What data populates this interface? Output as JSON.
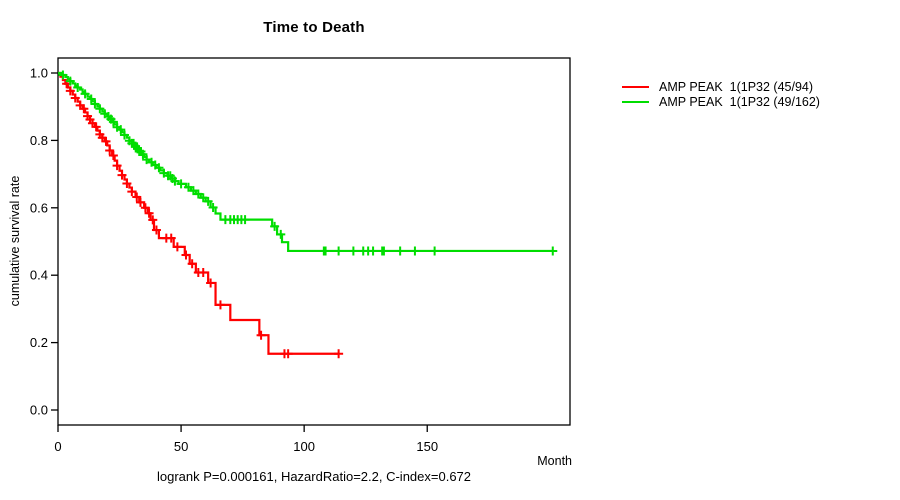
{
  "title": "Time to Death",
  "footer": "logrank P=0.000161, HazardRatio=2.2, C-index=0.672",
  "axes": {
    "x": {
      "label": "Month",
      "ticks": [
        0,
        50,
        100,
        150
      ]
    },
    "y": {
      "label": "cumulative survival rate",
      "ticks": [
        0.0,
        0.2,
        0.4,
        0.6,
        0.8,
        1.0
      ]
    }
  },
  "legend": [
    {
      "label": "AMP PEAK  1(1P32 (45/94)",
      "color": "#ff0000"
    },
    {
      "label": "AMP PEAK  1(1P32 (49/162)",
      "color": "#00dd00"
    }
  ],
  "colors": {
    "curve_red": "#ff0000",
    "curve_green": "#00dd00",
    "axis": "#000000"
  },
  "chart_data": {
    "type": "line",
    "variant": "kaplan_meier_step",
    "title": "Time to Death",
    "xlabel": "Month",
    "ylabel": "cumulative survival rate",
    "xlim": [
      0,
      208
    ],
    "xticks": [
      0,
      50,
      100,
      150
    ],
    "ylim": [
      0.0,
      1.0
    ],
    "yticks": [
      0.0,
      0.2,
      0.4,
      0.6,
      0.8,
      1.0
    ],
    "grid": false,
    "legend_position": "right-outside",
    "annotation": "logrank P=0.000161, HazardRatio=2.2, C-index=0.672",
    "series": [
      {
        "name": "AMP PEAK  1(1P32 (45/94)",
        "events_n_label": "45/94",
        "color": "#ff0000",
        "end_time": 114,
        "steps": [
          [
            0,
            1
          ],
          [
            1,
            0.989
          ],
          [
            2,
            0.979
          ],
          [
            3,
            0.968
          ],
          [
            4,
            0.957
          ],
          [
            5,
            0.947
          ],
          [
            6,
            0.936
          ],
          [
            7,
            0.926
          ],
          [
            8,
            0.915
          ],
          [
            9,
            0.904
          ],
          [
            10,
            0.894
          ],
          [
            11,
            0.883
          ],
          [
            12,
            0.872
          ],
          [
            13,
            0.862
          ],
          [
            14,
            0.851
          ],
          [
            15,
            0.84
          ],
          [
            16,
            0.829
          ],
          [
            17,
            0.818
          ],
          [
            18,
            0.808
          ],
          [
            19,
            0.797
          ],
          [
            20,
            0.785
          ],
          [
            21,
            0.77
          ],
          [
            22,
            0.755
          ],
          [
            23,
            0.74
          ],
          [
            24,
            0.725
          ],
          [
            25,
            0.71
          ],
          [
            26,
            0.697
          ],
          [
            27,
            0.684
          ],
          [
            28,
            0.672
          ],
          [
            29,
            0.66
          ],
          [
            30,
            0.648
          ],
          [
            31.5,
            0.632
          ],
          [
            33,
            0.616
          ],
          [
            35,
            0.6
          ],
          [
            36.5,
            0.584
          ],
          [
            37.6,
            0.564
          ],
          [
            39,
            0.534
          ],
          [
            41,
            0.51
          ],
          [
            47,
            0.484
          ],
          [
            51.5,
            0.46
          ],
          [
            53.5,
            0.434
          ],
          [
            56,
            0.408
          ],
          [
            61,
            0.377
          ],
          [
            64,
            0.312
          ],
          [
            70,
            0.267
          ],
          [
            81.8,
            0.222
          ],
          [
            85.5,
            0.167
          ]
        ],
        "censor_times": [
          3.5,
          5,
          7,
          9,
          10.5,
          12,
          13,
          14,
          15.5,
          17,
          18,
          19.5,
          21,
          22.5,
          24,
          26,
          28,
          30,
          32,
          33.5,
          35.5,
          37,
          38.5,
          40,
          44,
          46,
          48.5,
          52,
          54.5,
          57,
          59,
          62,
          66,
          82.5,
          92,
          93.5,
          114
        ]
      },
      {
        "name": "AMP PEAK  1(1P32 (49/162)",
        "events_n_label": "49/162",
        "color": "#00dd00",
        "end_time": 201,
        "steps": [
          [
            0,
            1
          ],
          [
            1.5,
            0.994
          ],
          [
            3,
            0.988
          ],
          [
            4,
            0.982
          ],
          [
            5,
            0.976
          ],
          [
            6,
            0.969
          ],
          [
            7,
            0.963
          ],
          [
            8,
            0.957
          ],
          [
            9,
            0.951
          ],
          [
            10,
            0.944
          ],
          [
            11,
            0.938
          ],
          [
            12,
            0.93
          ],
          [
            13,
            0.923
          ],
          [
            14,
            0.916
          ],
          [
            15,
            0.908
          ],
          [
            16,
            0.901
          ],
          [
            17,
            0.894
          ],
          [
            18,
            0.886
          ],
          [
            19,
            0.879
          ],
          [
            20,
            0.871
          ],
          [
            21,
            0.863
          ],
          [
            22,
            0.855
          ],
          [
            23,
            0.847
          ],
          [
            24,
            0.839
          ],
          [
            25,
            0.832
          ],
          [
            26,
            0.824
          ],
          [
            27,
            0.816
          ],
          [
            28,
            0.808
          ],
          [
            29,
            0.799
          ],
          [
            30,
            0.791
          ],
          [
            31,
            0.783
          ],
          [
            32,
            0.775
          ],
          [
            33,
            0.767
          ],
          [
            34,
            0.759
          ],
          [
            35,
            0.751
          ],
          [
            36,
            0.743
          ],
          [
            37,
            0.735
          ],
          [
            38.5,
            0.727
          ],
          [
            40,
            0.719
          ],
          [
            41.5,
            0.711
          ],
          [
            43,
            0.703
          ],
          [
            44.5,
            0.695
          ],
          [
            46,
            0.687
          ],
          [
            47.5,
            0.679
          ],
          [
            49,
            0.671
          ],
          [
            52,
            0.661
          ],
          [
            54,
            0.651
          ],
          [
            56,
            0.641
          ],
          [
            58,
            0.63
          ],
          [
            60,
            0.619
          ],
          [
            62,
            0.601
          ],
          [
            64,
            0.583
          ],
          [
            66,
            0.565
          ],
          [
            87,
            0.545
          ],
          [
            89,
            0.521
          ],
          [
            91,
            0.498
          ],
          [
            93.5,
            0.472
          ]
        ],
        "censor_times": [
          2,
          5,
          8,
          11,
          13.5,
          15,
          17,
          19,
          20.5,
          21.5,
          22.5,
          24,
          25.5,
          27,
          29,
          30,
          30.7,
          31.5,
          32.3,
          33,
          33.7,
          34.5,
          36,
          38,
          39.5,
          41,
          43,
          44.7,
          45.6,
          46.5,
          47.5,
          50,
          53,
          55,
          57,
          59,
          61,
          63,
          68,
          70,
          71.5,
          73,
          74.5,
          76,
          88,
          90.5,
          108,
          108.7,
          114,
          120,
          124,
          126,
          128,
          131.7,
          132.4,
          139,
          145,
          153,
          201
        ]
      }
    ]
  }
}
